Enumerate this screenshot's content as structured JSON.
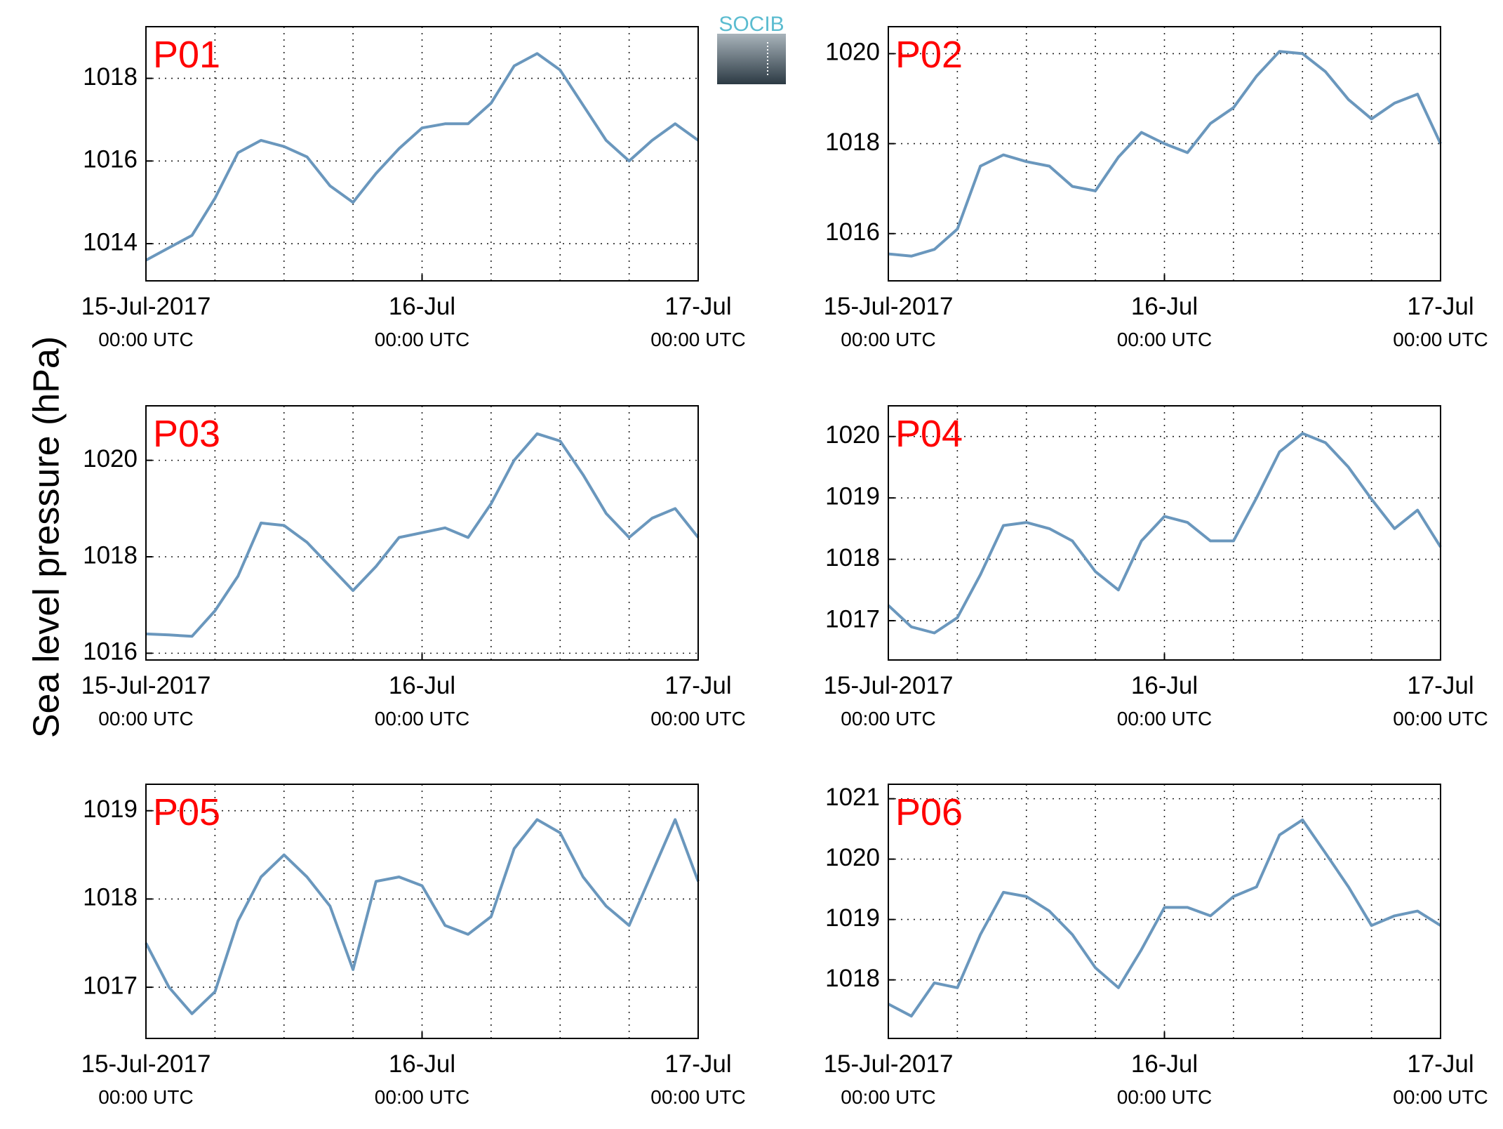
{
  "ylabel": "Sea level pressure (hPa)",
  "logo": "SOCIB",
  "chart_data": [
    {
      "type": "line",
      "title": "P01",
      "color": "#6a97bd",
      "title_color": "#ff0000",
      "grid": true,
      "x": [
        "2017-07-15T00:00",
        "2017-07-15T02:00",
        "2017-07-15T04:00",
        "2017-07-15T06:00",
        "2017-07-15T08:00",
        "2017-07-15T10:00",
        "2017-07-15T12:00",
        "2017-07-15T14:00",
        "2017-07-15T16:00",
        "2017-07-15T18:00",
        "2017-07-15T20:00",
        "2017-07-15T22:00",
        "2017-07-16T00:00",
        "2017-07-16T02:00",
        "2017-07-16T04:00",
        "2017-07-16T06:00",
        "2017-07-16T08:00",
        "2017-07-16T10:00",
        "2017-07-16T12:00",
        "2017-07-16T14:00",
        "2017-07-16T16:00",
        "2017-07-16T18:00",
        "2017-07-16T20:00",
        "2017-07-16T22:00",
        "2017-07-17T00:00"
      ],
      "values": [
        1013.6,
        1013.9,
        1014.2,
        1015.1,
        1016.2,
        1016.5,
        1016.35,
        1016.1,
        1015.4,
        1015.0,
        1015.7,
        1016.3,
        1016.8,
        1016.9,
        1016.9,
        1017.4,
        1018.3,
        1018.6,
        1018.2,
        1017.35,
        1016.5,
        1016.0,
        1016.5,
        1016.9,
        1016.5
      ],
      "xlim": [
        "2017-07-15T00:00",
        "2017-07-17T00:00"
      ],
      "xticks": [
        {
          "value": "2017-07-15T00:00",
          "label": "15-Jul-2017"
        },
        {
          "value": "2017-07-16T00:00",
          "label": "16-Jul"
        },
        {
          "value": "2017-07-17T00:00",
          "label": "17-Jul"
        }
      ],
      "xtick_sublabels": [
        "00:00 UTC",
        "00:00 UTC",
        "00:00 UTC"
      ],
      "xgrid": [
        "2017-07-15T06:00",
        "2017-07-15T12:00",
        "2017-07-15T18:00",
        "2017-07-16T00:00",
        "2017-07-16T06:00",
        "2017-07-16T12:00",
        "2017-07-16T18:00"
      ],
      "ylim": [
        1013.1,
        1019.25
      ],
      "yticks": [
        1014,
        1016,
        1018
      ]
    },
    {
      "type": "line",
      "title": "P02",
      "color": "#6a97bd",
      "title_color": "#ff0000",
      "grid": true,
      "x": [
        "2017-07-15T00:00",
        "2017-07-15T02:00",
        "2017-07-15T04:00",
        "2017-07-15T06:00",
        "2017-07-15T08:00",
        "2017-07-15T10:00",
        "2017-07-15T12:00",
        "2017-07-15T14:00",
        "2017-07-15T16:00",
        "2017-07-15T18:00",
        "2017-07-15T20:00",
        "2017-07-15T22:00",
        "2017-07-16T00:00",
        "2017-07-16T02:00",
        "2017-07-16T04:00",
        "2017-07-16T06:00",
        "2017-07-16T08:00",
        "2017-07-16T10:00",
        "2017-07-16T12:00",
        "2017-07-16T14:00",
        "2017-07-16T16:00",
        "2017-07-16T18:00",
        "2017-07-16T20:00",
        "2017-07-16T22:00",
        "2017-07-17T00:00"
      ],
      "values": [
        1015.55,
        1015.5,
        1015.65,
        1016.1,
        1017.5,
        1017.75,
        1017.6,
        1017.5,
        1017.05,
        1016.95,
        1017.7,
        1018.25,
        1018.0,
        1017.8,
        1018.45,
        1018.8,
        1019.5,
        1020.05,
        1020.0,
        1019.6,
        1018.98,
        1018.55,
        1018.9,
        1019.1,
        1018.0
      ],
      "xlim": [
        "2017-07-15T00:00",
        "2017-07-17T00:00"
      ],
      "xticks": [
        {
          "value": "2017-07-15T00:00",
          "label": "15-Jul-2017"
        },
        {
          "value": "2017-07-16T00:00",
          "label": "16-Jul"
        },
        {
          "value": "2017-07-17T00:00",
          "label": "17-Jul"
        }
      ],
      "xtick_sublabels": [
        "00:00 UTC",
        "00:00 UTC",
        "00:00 UTC"
      ],
      "xgrid": [
        "2017-07-15T06:00",
        "2017-07-15T12:00",
        "2017-07-15T18:00",
        "2017-07-16T00:00",
        "2017-07-16T06:00",
        "2017-07-16T12:00",
        "2017-07-16T18:00"
      ],
      "ylim": [
        1014.95,
        1020.6
      ],
      "yticks": [
        1016,
        1018,
        1020
      ]
    },
    {
      "type": "line",
      "title": "P03",
      "color": "#6a97bd",
      "title_color": "#ff0000",
      "grid": true,
      "x": [
        "2017-07-15T00:00",
        "2017-07-15T02:00",
        "2017-07-15T04:00",
        "2017-07-15T06:00",
        "2017-07-15T08:00",
        "2017-07-15T10:00",
        "2017-07-15T12:00",
        "2017-07-15T14:00",
        "2017-07-15T16:00",
        "2017-07-15T18:00",
        "2017-07-15T20:00",
        "2017-07-15T22:00",
        "2017-07-16T00:00",
        "2017-07-16T02:00",
        "2017-07-16T04:00",
        "2017-07-16T06:00",
        "2017-07-16T08:00",
        "2017-07-16T10:00",
        "2017-07-16T12:00",
        "2017-07-16T14:00",
        "2017-07-16T16:00",
        "2017-07-16T18:00",
        "2017-07-16T20:00",
        "2017-07-16T22:00",
        "2017-07-17T00:00"
      ],
      "values": [
        1016.4,
        1016.38,
        1016.35,
        1016.88,
        1017.6,
        1018.7,
        1018.65,
        1018.3,
        1017.8,
        1017.3,
        1017.8,
        1018.4,
        1018.5,
        1018.6,
        1018.4,
        1019.1,
        1020.0,
        1020.55,
        1020.4,
        1019.7,
        1018.9,
        1018.4,
        1018.8,
        1019.0,
        1018.4
      ],
      "xlim": [
        "2017-07-15T00:00",
        "2017-07-17T00:00"
      ],
      "xticks": [
        {
          "value": "2017-07-15T00:00",
          "label": "15-Jul-2017"
        },
        {
          "value": "2017-07-16T00:00",
          "label": "16-Jul"
        },
        {
          "value": "2017-07-17T00:00",
          "label": "17-Jul"
        }
      ],
      "xtick_sublabels": [
        "00:00 UTC",
        "00:00 UTC",
        "00:00 UTC"
      ],
      "xgrid": [
        "2017-07-15T06:00",
        "2017-07-15T12:00",
        "2017-07-15T18:00",
        "2017-07-16T00:00",
        "2017-07-16T06:00",
        "2017-07-16T12:00",
        "2017-07-16T18:00"
      ],
      "ylim": [
        1015.86,
        1021.13
      ],
      "yticks": [
        1016,
        1018,
        1020
      ]
    },
    {
      "type": "line",
      "title": "P04",
      "color": "#6a97bd",
      "title_color": "#ff0000",
      "grid": true,
      "x": [
        "2017-07-15T00:00",
        "2017-07-15T02:00",
        "2017-07-15T04:00",
        "2017-07-15T06:00",
        "2017-07-15T08:00",
        "2017-07-15T10:00",
        "2017-07-15T12:00",
        "2017-07-15T14:00",
        "2017-07-15T16:00",
        "2017-07-15T18:00",
        "2017-07-15T20:00",
        "2017-07-15T22:00",
        "2017-07-16T00:00",
        "2017-07-16T02:00",
        "2017-07-16T04:00",
        "2017-07-16T06:00",
        "2017-07-16T08:00",
        "2017-07-16T10:00",
        "2017-07-16T12:00",
        "2017-07-16T14:00",
        "2017-07-16T16:00",
        "2017-07-16T18:00",
        "2017-07-16T20:00",
        "2017-07-16T22:00",
        "2017-07-17T00:00"
      ],
      "values": [
        1017.25,
        1016.9,
        1016.8,
        1017.05,
        1017.75,
        1018.55,
        1018.6,
        1018.5,
        1018.3,
        1017.8,
        1017.5,
        1018.3,
        1018.7,
        1018.6,
        1018.3,
        1018.3,
        1019.0,
        1019.75,
        1020.05,
        1019.9,
        1019.5,
        1018.98,
        1018.5,
        1018.8,
        1018.2
      ],
      "xlim": [
        "2017-07-15T00:00",
        "2017-07-17T00:00"
      ],
      "xticks": [
        {
          "value": "2017-07-15T00:00",
          "label": "15-Jul-2017"
        },
        {
          "value": "2017-07-16T00:00",
          "label": "16-Jul"
        },
        {
          "value": "2017-07-17T00:00",
          "label": "17-Jul"
        }
      ],
      "xtick_sublabels": [
        "00:00 UTC",
        "00:00 UTC",
        "00:00 UTC"
      ],
      "xgrid": [
        "2017-07-15T06:00",
        "2017-07-15T12:00",
        "2017-07-15T18:00",
        "2017-07-16T00:00",
        "2017-07-16T06:00",
        "2017-07-16T12:00",
        "2017-07-16T18:00"
      ],
      "ylim": [
        1016.36,
        1020.5
      ],
      "yticks": [
        1017,
        1018,
        1019,
        1020
      ]
    },
    {
      "type": "line",
      "title": "P05",
      "color": "#6a97bd",
      "title_color": "#ff0000",
      "grid": true,
      "x": [
        "2017-07-15T00:00",
        "2017-07-15T02:00",
        "2017-07-15T04:00",
        "2017-07-15T06:00",
        "2017-07-15T08:00",
        "2017-07-15T10:00",
        "2017-07-15T12:00",
        "2017-07-15T14:00",
        "2017-07-15T16:00",
        "2017-07-15T18:00",
        "2017-07-15T20:00",
        "2017-07-15T22:00",
        "2017-07-16T00:00",
        "2017-07-16T02:00",
        "2017-07-16T04:00",
        "2017-07-16T06:00",
        "2017-07-16T08:00",
        "2017-07-16T10:00",
        "2017-07-16T12:00",
        "2017-07-16T14:00",
        "2017-07-16T16:00",
        "2017-07-16T18:00",
        "2017-07-16T20:00",
        "2017-07-16T22:00",
        "2017-07-17T00:00"
      ],
      "values": [
        1017.5,
        1017.0,
        1016.7,
        1016.95,
        1017.75,
        1018.25,
        1018.5,
        1018.25,
        1017.92,
        1017.2,
        1018.2,
        1018.25,
        1018.15,
        1017.7,
        1017.6,
        1017.8,
        1018.57,
        1018.9,
        1018.75,
        1018.25,
        1017.92,
        1017.7,
        1018.3,
        1018.9,
        1018.2
      ],
      "xlim": [
        "2017-07-15T00:00",
        "2017-07-17T00:00"
      ],
      "xticks": [
        {
          "value": "2017-07-15T00:00",
          "label": "15-Jul-2017"
        },
        {
          "value": "2017-07-16T00:00",
          "label": "16-Jul"
        },
        {
          "value": "2017-07-17T00:00",
          "label": "17-Jul"
        }
      ],
      "xtick_sublabels": [
        "00:00 UTC",
        "00:00 UTC",
        "00:00 UTC"
      ],
      "xgrid": [
        "2017-07-15T06:00",
        "2017-07-15T12:00",
        "2017-07-15T18:00",
        "2017-07-16T00:00",
        "2017-07-16T06:00",
        "2017-07-16T12:00",
        "2017-07-16T18:00"
      ],
      "ylim": [
        1016.42,
        1019.3
      ],
      "yticks": [
        1017,
        1018,
        1019
      ]
    },
    {
      "type": "line",
      "title": "P06",
      "color": "#6a97bd",
      "title_color": "#ff0000",
      "grid": true,
      "x": [
        "2017-07-15T00:00",
        "2017-07-15T02:00",
        "2017-07-15T04:00",
        "2017-07-15T06:00",
        "2017-07-15T08:00",
        "2017-07-15T10:00",
        "2017-07-15T12:00",
        "2017-07-15T14:00",
        "2017-07-15T16:00",
        "2017-07-15T18:00",
        "2017-07-15T20:00",
        "2017-07-15T22:00",
        "2017-07-16T00:00",
        "2017-07-16T02:00",
        "2017-07-16T04:00",
        "2017-07-16T06:00",
        "2017-07-16T08:00",
        "2017-07-16T10:00",
        "2017-07-16T12:00",
        "2017-07-16T14:00",
        "2017-07-16T16:00",
        "2017-07-16T18:00",
        "2017-07-16T20:00",
        "2017-07-16T22:00",
        "2017-07-17T00:00"
      ],
      "values": [
        1017.6,
        1017.4,
        1017.95,
        1017.87,
        1018.75,
        1019.45,
        1019.38,
        1019.14,
        1018.75,
        1018.2,
        1017.87,
        1018.5,
        1019.2,
        1019.2,
        1019.06,
        1019.38,
        1019.54,
        1020.4,
        1020.65,
        1020.1,
        1019.54,
        1018.9,
        1019.06,
        1019.14,
        1018.9
      ],
      "xlim": [
        "2017-07-15T00:00",
        "2017-07-17T00:00"
      ],
      "xticks": [
        {
          "value": "2017-07-15T00:00",
          "label": "15-Jul-2017"
        },
        {
          "value": "2017-07-16T00:00",
          "label": "16-Jul"
        },
        {
          "value": "2017-07-17T00:00",
          "label": "17-Jul"
        }
      ],
      "xtick_sublabels": [
        "00:00 UTC",
        "00:00 UTC",
        "00:00 UTC"
      ],
      "xgrid": [
        "2017-07-15T06:00",
        "2017-07-15T12:00",
        "2017-07-15T18:00",
        "2017-07-16T00:00",
        "2017-07-16T06:00",
        "2017-07-16T12:00",
        "2017-07-16T18:00"
      ],
      "ylim": [
        1017.03,
        1021.24
      ],
      "yticks": [
        1018,
        1019,
        1020,
        1021
      ]
    }
  ]
}
